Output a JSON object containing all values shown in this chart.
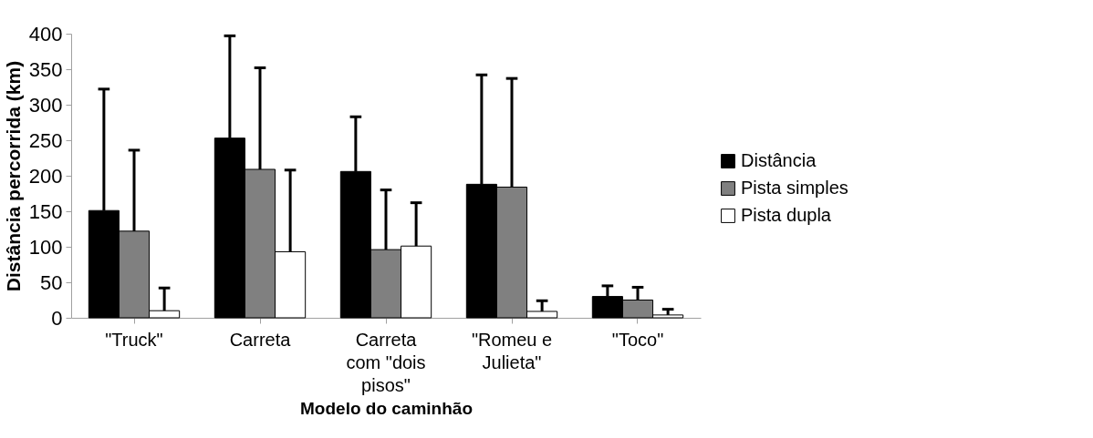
{
  "chart_data": {
    "type": "bar",
    "xlabel": "Modelo do caminhão",
    "ylabel": "Distância percorrida (km)",
    "categories": [
      "\"Truck\"",
      "Carreta",
      "Carreta com \"dois pisos\"",
      "\"Romeu e Julieta\"",
      "\"Toco\""
    ],
    "series": [
      {
        "name": "Distância",
        "color": "#000000",
        "values": [
          151,
          253,
          206,
          188,
          30
        ],
        "errors": [
          [
            151,
            322
          ],
          [
            253,
            397
          ],
          [
            206,
            283
          ],
          [
            188,
            342
          ],
          [
            30,
            45
          ]
        ]
      },
      {
        "name": "Pista simples",
        "color": "#808080",
        "values": [
          122,
          209,
          96,
          184,
          25
        ],
        "errors": [
          [
            122,
            236
          ],
          [
            209,
            352
          ],
          [
            96,
            180
          ],
          [
            184,
            337
          ],
          [
            25,
            43
          ]
        ]
      },
      {
        "name": "Pista dupla",
        "color": "#ffffff",
        "values": [
          10,
          93,
          101,
          9,
          4
        ],
        "errors": [
          [
            10,
            42
          ],
          [
            93,
            208
          ],
          [
            101,
            162
          ],
          [
            9,
            24
          ],
          [
            4,
            12
          ]
        ]
      }
    ],
    "ylim": [
      0,
      400
    ],
    "yticks": [
      0,
      50,
      100,
      150,
      200,
      250,
      300,
      350,
      400
    ],
    "grid": false,
    "legend": "right"
  }
}
